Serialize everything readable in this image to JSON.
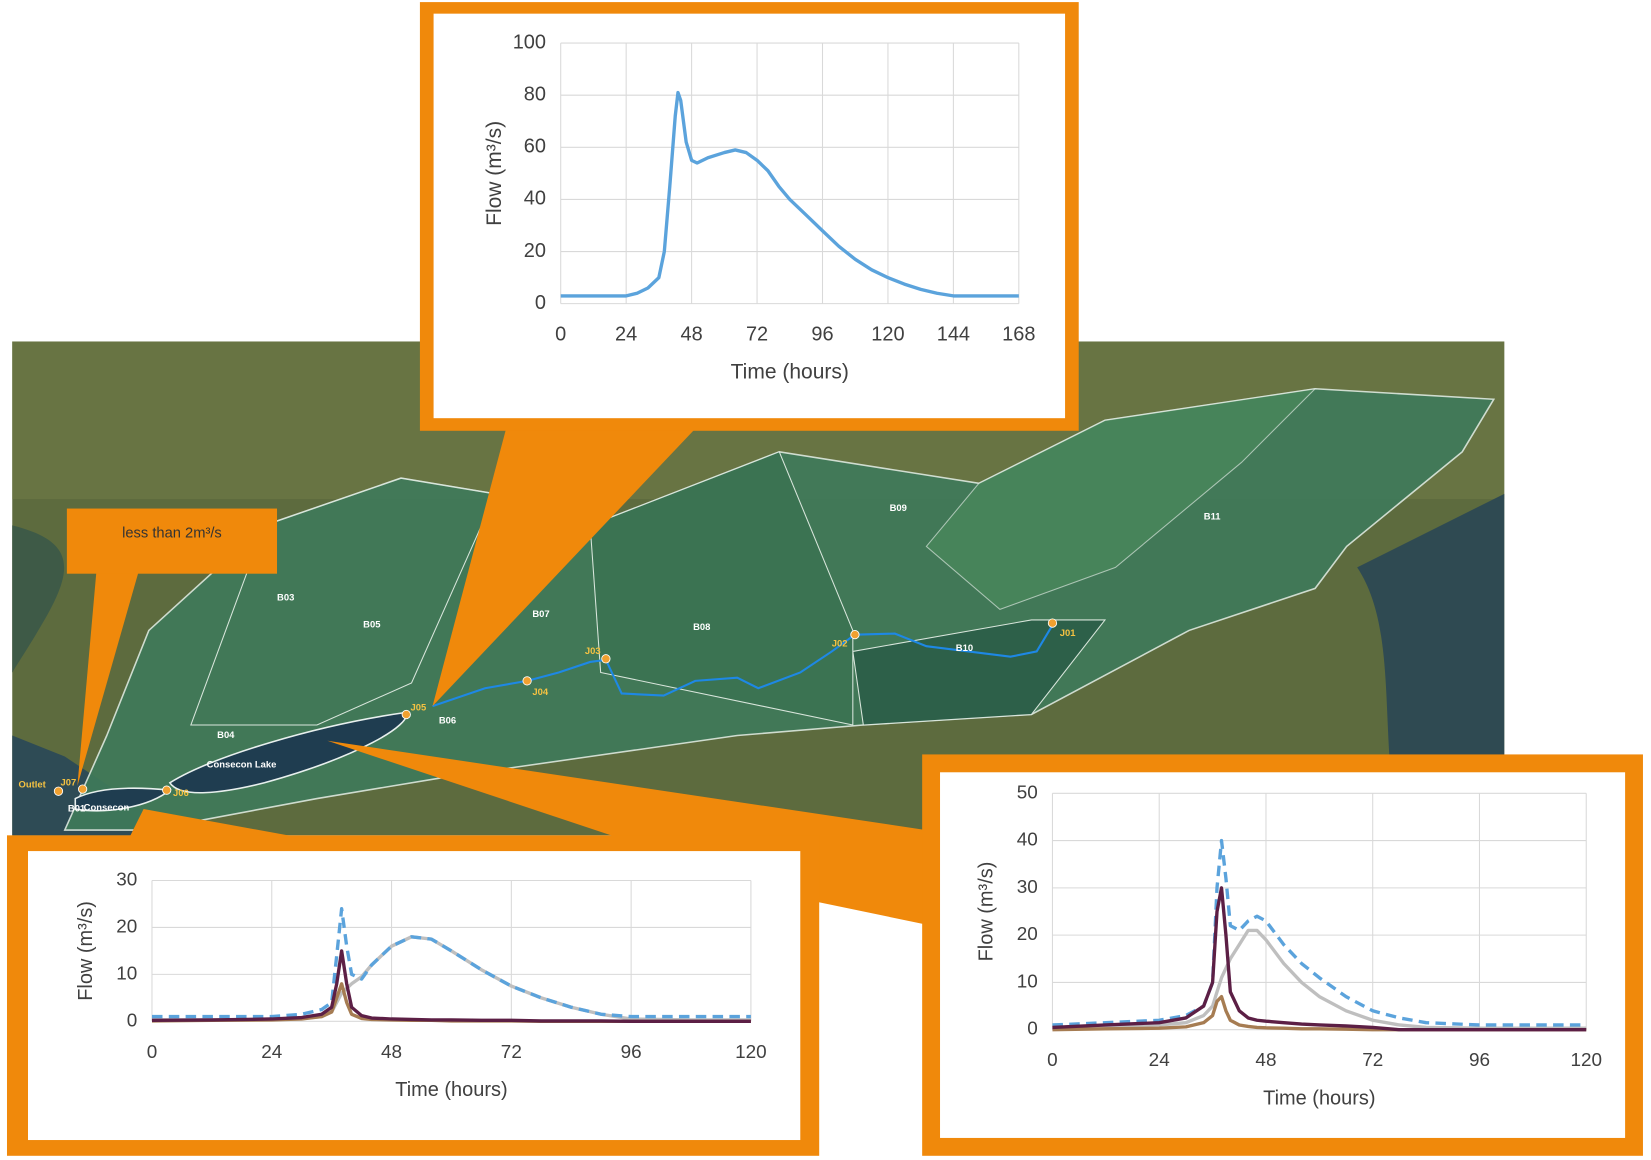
{
  "chart_data": [
    {
      "type": "line",
      "xlabel": "Time (hours)",
      "ylabel": "Flow (m³/s)",
      "x": [
        0,
        24,
        28,
        32,
        36,
        38,
        40,
        42,
        43,
        44,
        46,
        48,
        50,
        54,
        60,
        64,
        68,
        72,
        76,
        80,
        84,
        90,
        96,
        102,
        108,
        114,
        120,
        126,
        132,
        138,
        144,
        168
      ],
      "series": [
        {
          "color": "#5ba3dc",
          "style": "solid",
          "values": [
            3,
            3,
            4,
            6,
            10,
            20,
            45,
            72,
            81,
            78,
            62,
            55,
            54,
            56,
            58,
            59,
            58,
            55,
            51,
            45,
            40,
            34,
            28,
            22,
            17,
            13,
            10,
            7.5,
            5.5,
            4,
            3,
            3
          ]
        }
      ],
      "xlim": [
        0,
        168
      ],
      "xticks": [
        0,
        24,
        48,
        72,
        96,
        120,
        144,
        168
      ],
      "ylim": [
        0,
        100
      ],
      "yticks": [
        0,
        20,
        40,
        60,
        80,
        100
      ],
      "grid": true
    },
    {
      "type": "line",
      "xlabel": "Time (hours)",
      "ylabel": "Flow (m³/s)",
      "x": [
        0,
        12,
        24,
        30,
        34,
        36,
        37,
        38,
        39,
        40,
        42,
        44,
        48,
        52,
        56,
        60,
        66,
        72,
        78,
        84,
        90,
        96,
        108,
        120
      ],
      "series": [
        {
          "color": "#bfbfbf",
          "style": "solid",
          "values": [
            0.3,
            0.3,
            0.4,
            0.6,
            1,
            2,
            4,
            6,
            7,
            8,
            9.5,
            12,
            16,
            18,
            17.5,
            15,
            11,
            7.5,
            5,
            3,
            1.5,
            0.5,
            0.3,
            0.3
          ]
        },
        {
          "color": "#5ba3dc",
          "style": "dashed",
          "values": [
            1,
            1,
            1,
            1.5,
            2.5,
            4,
            14,
            24,
            16,
            10,
            9,
            12,
            16,
            18,
            17.5,
            15,
            11,
            7.5,
            5,
            3,
            1.5,
            1,
            1,
            1
          ]
        },
        {
          "color": "#a67c52",
          "style": "solid",
          "values": [
            0.1,
            0.2,
            0.3,
            0.5,
            1,
            2,
            5,
            8,
            4,
            1.5,
            0.6,
            0.4,
            0.3,
            0.2,
            0.2,
            0.1,
            0.1,
            0.1,
            0,
            0,
            0,
            0,
            0,
            0
          ]
        },
        {
          "color": "#5c1f45",
          "style": "solid",
          "values": [
            0.2,
            0.3,
            0.5,
            0.8,
            1.5,
            3,
            8,
            15,
            8,
            3,
            1.2,
            0.7,
            0.5,
            0.4,
            0.3,
            0.3,
            0.2,
            0.2,
            0.1,
            0.1,
            0.1,
            0,
            0,
            0
          ]
        }
      ],
      "xlim": [
        0,
        120
      ],
      "xticks": [
        0,
        24,
        48,
        72,
        96,
        120
      ],
      "ylim": [
        0,
        30
      ],
      "yticks": [
        0,
        10,
        20,
        30
      ],
      "grid": true
    },
    {
      "type": "line",
      "xlabel": "Time (hours)",
      "ylabel": "Flow (m³/s)",
      "x": [
        0,
        12,
        24,
        30,
        34,
        36,
        37,
        38,
        39,
        40,
        42,
        44,
        46,
        48,
        52,
        56,
        60,
        66,
        72,
        78,
        84,
        96,
        108,
        120
      ],
      "series": [
        {
          "color": "#bfbfbf",
          "style": "solid",
          "values": [
            0.5,
            0.7,
            1,
            1.5,
            3,
            5,
            8,
            11,
            13,
            15,
            18,
            21,
            21,
            19,
            14,
            10,
            7,
            4,
            2,
            1,
            0.5,
            0.3,
            0.3,
            0.3
          ]
        },
        {
          "color": "#5ba3dc",
          "style": "dashed",
          "values": [
            1,
            1.5,
            2,
            3,
            5,
            10,
            30,
            40,
            32,
            22,
            21,
            23,
            24,
            23,
            18,
            14,
            11,
            7,
            4,
            2.5,
            1.5,
            1,
            1,
            1
          ]
        },
        {
          "color": "#a67c52",
          "style": "solid",
          "values": [
            0,
            0.2,
            0.3,
            0.6,
            1.5,
            3,
            6,
            7,
            4,
            2,
            1,
            0.7,
            0.5,
            0.4,
            0.3,
            0.2,
            0.2,
            0.1,
            0,
            0,
            0,
            0,
            0,
            0
          ]
        },
        {
          "color": "#5c1f45",
          "style": "solid",
          "values": [
            0.5,
            1,
            1.5,
            2.5,
            5,
            10,
            25,
            30,
            20,
            8,
            4,
            2.5,
            2,
            1.8,
            1.5,
            1.2,
            1,
            0.8,
            0.5,
            0,
            0,
            0,
            0,
            0
          ]
        }
      ],
      "xlim": [
        0,
        120
      ],
      "xticks": [
        0,
        24,
        48,
        72,
        96,
        120
      ],
      "ylim": [
        0,
        50
      ],
      "yticks": [
        0,
        10,
        20,
        30,
        40,
        50
      ],
      "grid": true
    }
  ],
  "callout": "less than 2m³/s",
  "map": {
    "basins": [
      "B01",
      "B03",
      "B04",
      "B05",
      "B06",
      "B07",
      "B08",
      "B09",
      "B10",
      "B11"
    ],
    "junctions": [
      "J01",
      "J02",
      "J03",
      "J04",
      "J05",
      "J06",
      "J07"
    ],
    "outlet": "Outlet",
    "lakes": [
      "Consecon Lake",
      "Consecon"
    ]
  }
}
